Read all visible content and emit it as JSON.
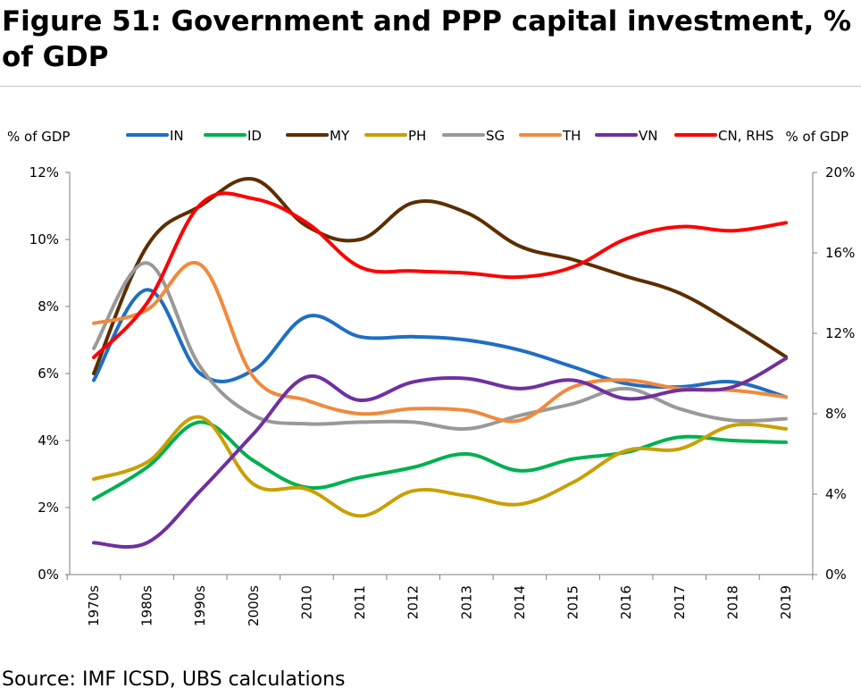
{
  "title": "Figure 51: Government and PPP capital investment, % of GDP",
  "source": "Source: IMF ICSD, UBS calculations",
  "chart_data": {
    "type": "line",
    "title": "Figure 51: Government and PPP capital investment, % of GDP",
    "categories": [
      "1970s",
      "1980s",
      "1990s",
      "2000s",
      "2010",
      "2011",
      "2012",
      "2013",
      "2014",
      "2015",
      "2016",
      "2017",
      "2018",
      "2019"
    ],
    "left_axis": {
      "label": "% of GDP",
      "min": 0,
      "max": 12,
      "ticks": [
        "0%",
        "2%",
        "4%",
        "6%",
        "8%",
        "10%",
        "12%"
      ]
    },
    "right_axis": {
      "label": "% of GDP",
      "min": 0,
      "max": 20,
      "ticks": [
        "0%",
        "4%",
        "8%",
        "12%",
        "16%",
        "20%"
      ]
    },
    "legend_position": "top",
    "grid": false,
    "series": [
      {
        "name": "IN",
        "axis": "left",
        "color": "#1f6fc1",
        "values": [
          5.8,
          8.5,
          6.0,
          6.1,
          7.7,
          7.1,
          7.1,
          7.0,
          6.7,
          6.2,
          5.7,
          5.6,
          5.75,
          5.3
        ]
      },
      {
        "name": "ID",
        "axis": "left",
        "color": "#00b050",
        "values": [
          2.25,
          3.2,
          4.55,
          3.4,
          2.6,
          2.9,
          3.2,
          3.6,
          3.1,
          3.45,
          3.65,
          4.1,
          4.0,
          3.95
        ]
      },
      {
        "name": "MY",
        "axis": "left",
        "color": "#5c2e00",
        "values": [
          6.0,
          9.8,
          11.0,
          11.8,
          10.4,
          10.0,
          11.1,
          10.8,
          9.8,
          9.4,
          8.9,
          8.4,
          7.5,
          6.5
        ]
      },
      {
        "name": "PH",
        "axis": "left",
        "color": "#c9a000",
        "values": [
          2.85,
          3.35,
          4.7,
          2.7,
          2.55,
          1.75,
          2.5,
          2.35,
          2.1,
          2.75,
          3.7,
          3.75,
          4.45,
          4.35
        ]
      },
      {
        "name": "SG",
        "axis": "left",
        "color": "#999999",
        "values": [
          6.75,
          9.3,
          6.2,
          4.75,
          4.5,
          4.55,
          4.55,
          4.35,
          4.75,
          5.1,
          5.55,
          4.95,
          4.6,
          4.65
        ]
      },
      {
        "name": "TH",
        "axis": "left",
        "color": "#f08a3c",
        "values": [
          7.5,
          7.9,
          9.25,
          5.9,
          5.2,
          4.8,
          4.95,
          4.9,
          4.6,
          5.6,
          5.8,
          5.55,
          5.5,
          5.3
        ]
      },
      {
        "name": "VN",
        "axis": "left",
        "color": "#7030a0",
        "values": [
          0.95,
          0.95,
          2.5,
          4.2,
          5.9,
          5.2,
          5.75,
          5.85,
          5.55,
          5.8,
          5.25,
          5.5,
          5.6,
          6.45
        ]
      },
      {
        "name": "CN, RHS",
        "axis": "right",
        "color": "#ff0000",
        "values": [
          10.8,
          13.5,
          18.4,
          18.7,
          17.5,
          15.3,
          15.1,
          15.0,
          14.8,
          15.3,
          16.7,
          17.3,
          17.1,
          17.5
        ]
      }
    ]
  }
}
